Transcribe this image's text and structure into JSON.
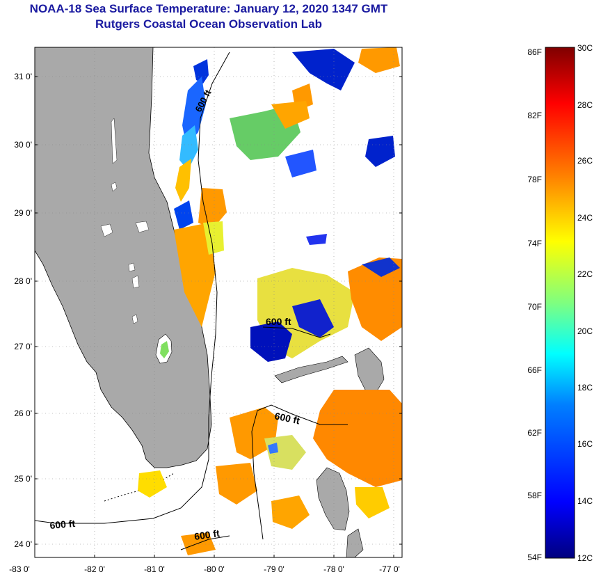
{
  "title": {
    "line1": "NOAA-18 Sea Surface Temperature:  January 12, 2020 1347 GMT",
    "line2": "Rutgers Coastal Ocean Observation Lab"
  },
  "map": {
    "lat_ticks": [
      "31 0'",
      "30 0'",
      "29 0'",
      "28 0'",
      "27 0'",
      "26 0'",
      "25 0'",
      "24 0'"
    ],
    "lon_ticks": [
      "-83 0'",
      "-82 0'",
      "-81 0'",
      "-80 0'",
      "-79 0'",
      "-78 0'",
      "-77 0'"
    ],
    "contour_labels": [
      "600 ft",
      "600 ft",
      "600 ft",
      "600 ft",
      "600 ft"
    ],
    "land_color": "#a9a9a9",
    "ocean_color": "#ffffff"
  },
  "colorbar": {
    "fahrenheit_labels": [
      "86F",
      "82F",
      "78F",
      "74F",
      "70F",
      "66F",
      "62F",
      "58F",
      "54F"
    ],
    "celsius_labels": [
      "30C",
      "28C",
      "26C",
      "24C",
      "22C",
      "20C",
      "18C",
      "16C",
      "14C",
      "12C"
    ],
    "colors": [
      "#00007f",
      "#0000ff",
      "#007fff",
      "#00ffff",
      "#7fff7f",
      "#ffff00",
      "#ff7f00",
      "#ff0000",
      "#7f0000"
    ]
  }
}
